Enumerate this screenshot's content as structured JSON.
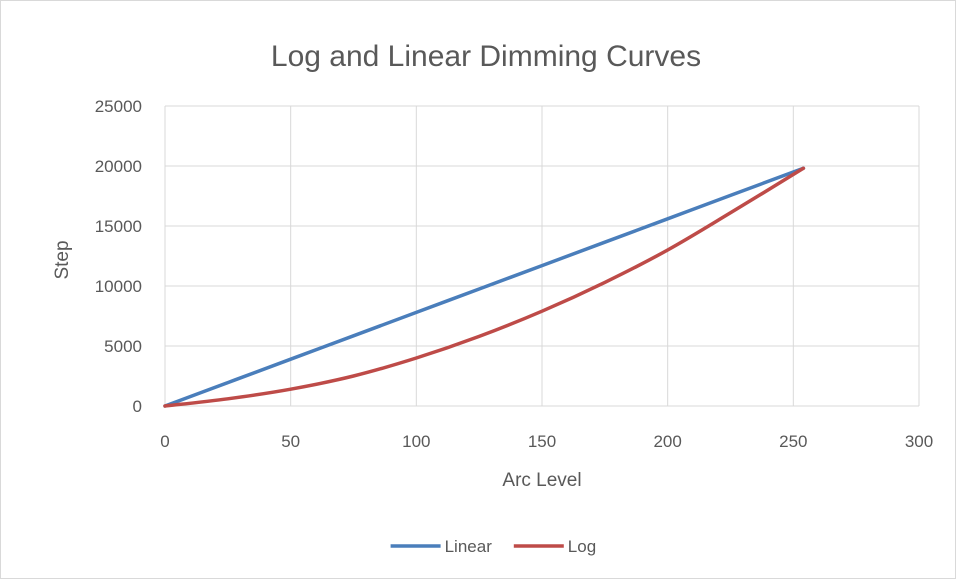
{
  "chart_data": {
    "type": "line",
    "title": "Log and Linear Dimming Curves",
    "xlabel": "Arc Level",
    "ylabel": "Step",
    "xlim": [
      0,
      300
    ],
    "ylim": [
      0,
      25000
    ],
    "x_ticks": [
      0,
      50,
      100,
      150,
      200,
      250,
      300
    ],
    "y_ticks": [
      0,
      5000,
      10000,
      15000,
      20000,
      25000
    ],
    "grid": true,
    "legend_position": "bottom",
    "series": [
      {
        "name": "Linear",
        "color": "#4a7ebb",
        "x": [
          0,
          25,
          50,
          75,
          100,
          125,
          150,
          175,
          200,
          225,
          254
        ],
        "y": [
          0,
          1950,
          3900,
          5850,
          7800,
          9750,
          11700,
          13650,
          15600,
          17550,
          19810
        ]
      },
      {
        "name": "Log",
        "color": "#be4b48",
        "x": [
          0,
          25,
          50,
          75,
          100,
          125,
          150,
          175,
          200,
          225,
          254
        ],
        "y": [
          0,
          600,
          1400,
          2500,
          4000,
          5800,
          7900,
          10300,
          13000,
          16100,
          19810
        ]
      }
    ]
  }
}
